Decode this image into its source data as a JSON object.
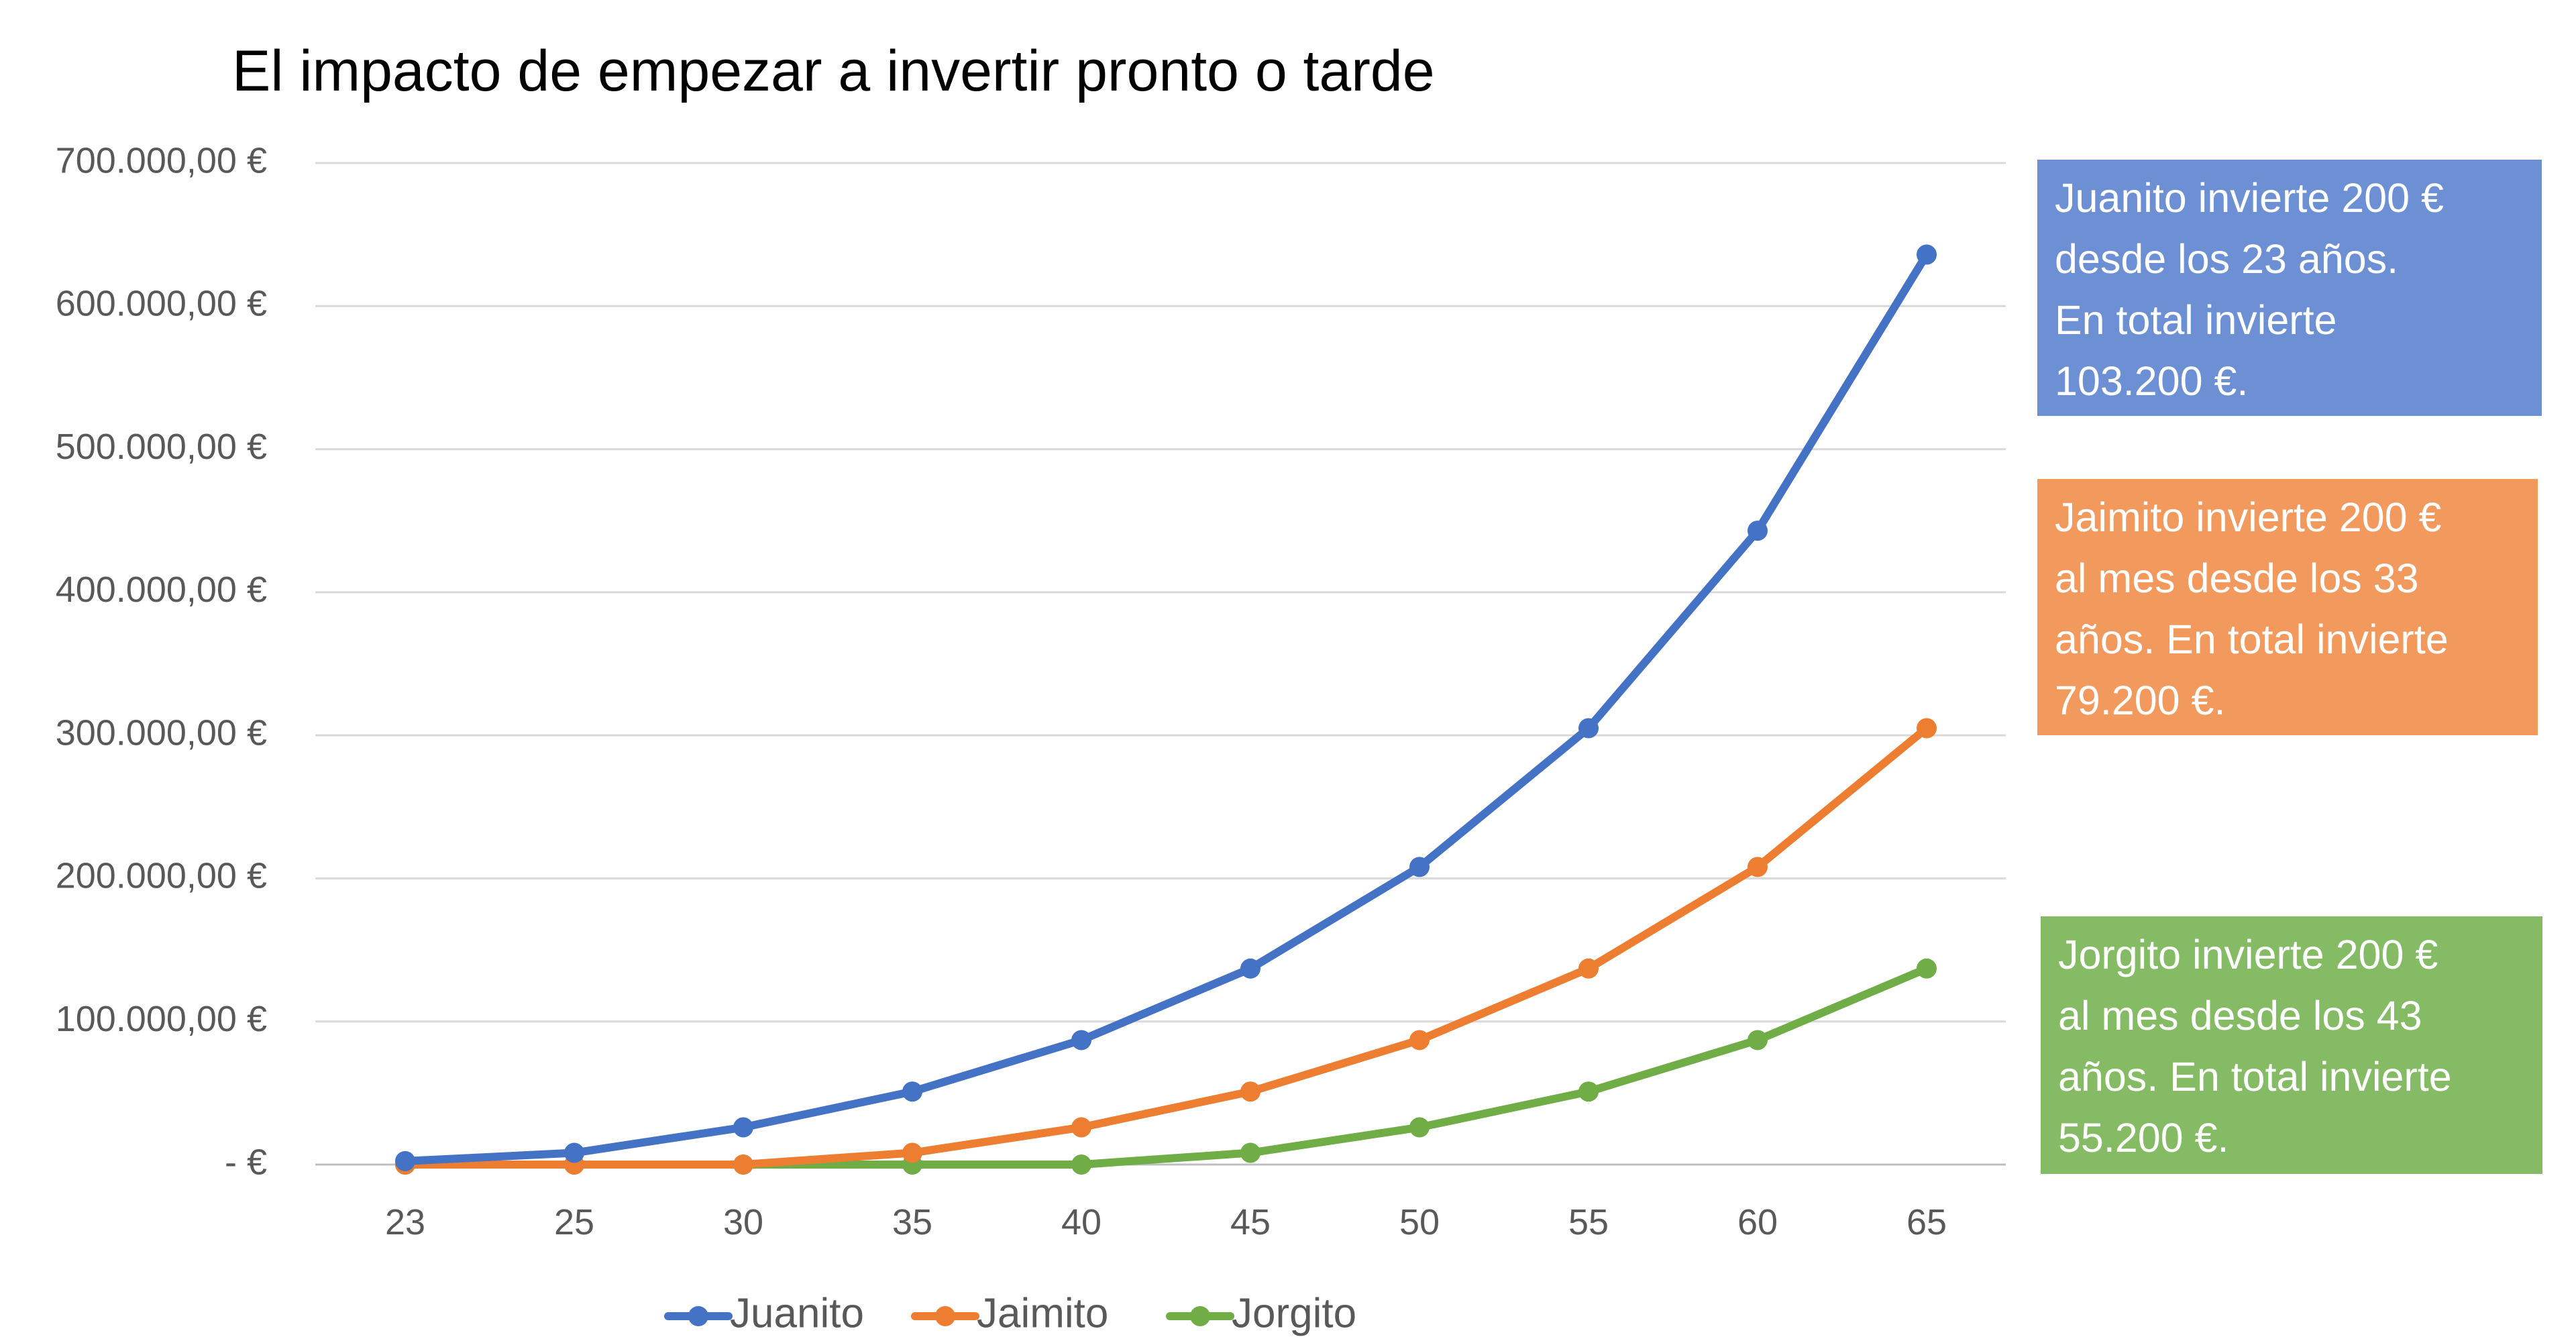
{
  "chart_data": {
    "type": "line",
    "title": "El impacto de empezar a invertir pronto o tarde",
    "xlabel": "",
    "ylabel": "",
    "categories": [
      "23",
      "25",
      "30",
      "35",
      "40",
      "45",
      "50",
      "55",
      "60",
      "65"
    ],
    "ylim": [
      0,
      700000
    ],
    "y_ticks": [
      {
        "value": 0,
        "label": "-  €"
      },
      {
        "value": 100000,
        "label": "100.000,00 €"
      },
      {
        "value": 200000,
        "label": "200.000,00 €"
      },
      {
        "value": 300000,
        "label": "300.000,00 €"
      },
      {
        "value": 400000,
        "label": "400.000,00 €"
      },
      {
        "value": 500000,
        "label": "500.000,00 €"
      },
      {
        "value": 600000,
        "label": "600.000,00 €"
      },
      {
        "value": 700000,
        "label": "700.000,00 €"
      }
    ],
    "grid": true,
    "legend_position": "bottom",
    "series": [
      {
        "name": "Juanito",
        "color": "#4472C4",
        "values": [
          2400,
          8200,
          26000,
          51000,
          87000,
          137000,
          208000,
          305000,
          443000,
          636000
        ]
      },
      {
        "name": "Jaimito",
        "color": "#ED7D31",
        "values": [
          0,
          0,
          0,
          8200,
          26000,
          51000,
          87000,
          137000,
          208000,
          305000
        ]
      },
      {
        "name": "Jorgito",
        "color": "#70AD47",
        "values": [
          0,
          0,
          0,
          0,
          0,
          8200,
          26000,
          51000,
          87000,
          137000
        ]
      }
    ],
    "annotations": [
      {
        "color": "#6D8FD4",
        "lines": [
          "Juanito invierte 200 €",
          "desde los 23 años.",
          "En total invierte",
          "103.200  €."
        ]
      },
      {
        "color": "#F29A5E",
        "lines": [
          "Jaimito invierte 200 €",
          "al mes desde los 33",
          "años. En total invierte",
          "79.200 €."
        ]
      },
      {
        "color": "#85BB65",
        "lines": [
          "Jorgito invierte 200 €",
          "al mes desde los 43",
          "años. En total invierte",
          "55.200 €."
        ]
      }
    ]
  }
}
